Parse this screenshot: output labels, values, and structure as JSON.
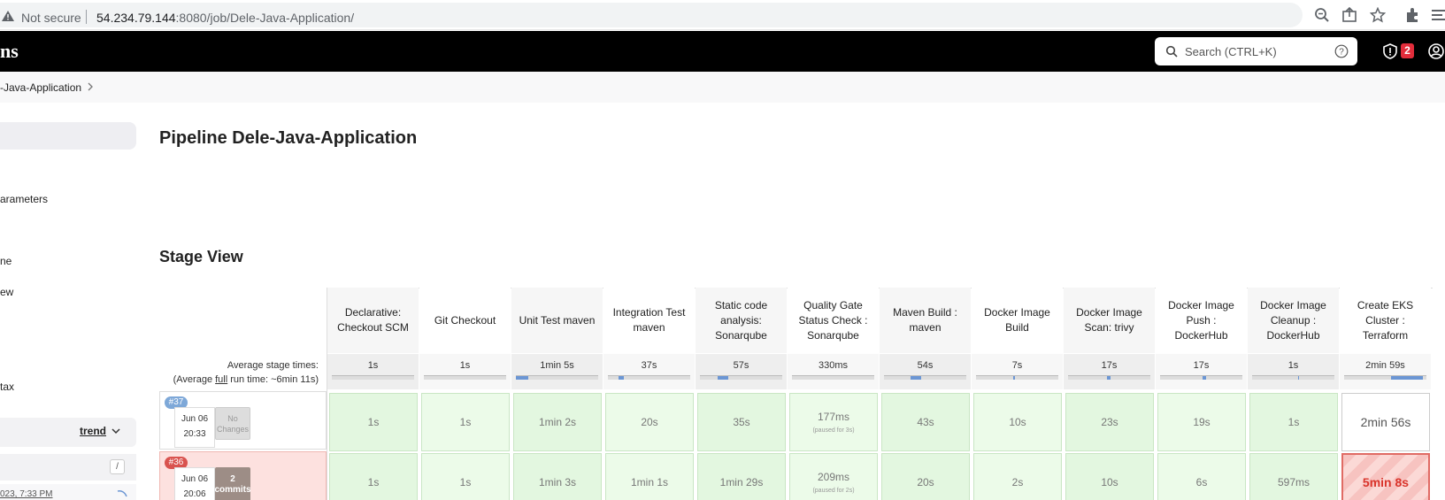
{
  "browser": {
    "security_label": "Not secure",
    "url_host": "54.234.79.144",
    "url_rest": ":8080/job/Dele-Java-Application/"
  },
  "header": {
    "logo_text": "ns",
    "search_placeholder": "Search (CTRL+K)",
    "security_badge_count": "2"
  },
  "breadcrumb": {
    "job_label": "-Java-Application"
  },
  "sidebar": {
    "items": [
      "arameters",
      "ne",
      "ew",
      "tax"
    ],
    "trend_label": "trend",
    "filter_key": "/",
    "history_date": "023, 7:33 PM"
  },
  "main": {
    "title": "Pipeline Dele-Java-Application",
    "stage_view_title": "Stage View",
    "avg_label_line1": "Average stage times:",
    "avg_label_prefix": "(Average ",
    "avg_label_full": "full",
    "avg_label_suffix": " run time: ~6min 11s)"
  },
  "stages": [
    {
      "name": "Declarative: Checkout SCM",
      "avg": "1s",
      "bar": [
        0,
        0
      ]
    },
    {
      "name": "Git Checkout",
      "avg": "1s",
      "bar": [
        0,
        0
      ]
    },
    {
      "name": "Unit Test maven",
      "avg": "1min 5s",
      "bar": [
        0,
        14
      ]
    },
    {
      "name": "Integration Test maven",
      "avg": "37s",
      "bar": [
        12,
        6
      ]
    },
    {
      "name": "Static code analysis: Sonarqube",
      "avg": "57s",
      "bar": [
        20,
        12
      ]
    },
    {
      "name": "Quality Gate Status Check : Sonarqube",
      "avg": "330ms",
      "bar": [
        0,
        0
      ]
    },
    {
      "name": "Maven Build : maven",
      "avg": "54s",
      "bar": [
        30,
        12
      ]
    },
    {
      "name": "Docker Image Build",
      "avg": "7s",
      "bar": [
        42,
        2
      ]
    },
    {
      "name": "Docker Image Scan: trivy",
      "avg": "17s",
      "bar": [
        44,
        4
      ]
    },
    {
      "name": "Docker Image Push : DockerHub",
      "avg": "17s",
      "bar": [
        48,
        4
      ]
    },
    {
      "name": "Docker Image Cleanup : DockerHub",
      "avg": "1s",
      "bar": [
        52,
        1
      ]
    },
    {
      "name": "Create EKS Cluster : Terraform",
      "avg": "2min 59s",
      "bar": [
        53,
        36
      ]
    }
  ],
  "builds": [
    {
      "number": "#37",
      "status": "success",
      "date": "Jun 06",
      "time": "20:33",
      "changes": "No Changes",
      "cells": [
        {
          "value": "1s"
        },
        {
          "value": "1s"
        },
        {
          "value": "1min 2s"
        },
        {
          "value": "20s"
        },
        {
          "value": "35s"
        },
        {
          "value": "177ms",
          "note": "(paused for 3s)"
        },
        {
          "value": "43s"
        },
        {
          "value": "10s"
        },
        {
          "value": "23s"
        },
        {
          "value": "19s"
        },
        {
          "value": "1s"
        },
        {
          "value": "2min 56s",
          "state": "running"
        }
      ]
    },
    {
      "number": "#36",
      "status": "failed",
      "date": "Jun 06",
      "time": "20:06",
      "changes_count": "2",
      "changes_label": "commits",
      "cells": [
        {
          "value": "1s"
        },
        {
          "value": "1s"
        },
        {
          "value": "1min 3s"
        },
        {
          "value": "1min 1s"
        },
        {
          "value": "1min 29s"
        },
        {
          "value": "209ms",
          "note": "(paused for 2s)"
        },
        {
          "value": "20s"
        },
        {
          "value": "2s"
        },
        {
          "value": "10s"
        },
        {
          "value": "6s"
        },
        {
          "value": "597ms"
        },
        {
          "value": "5min 8s",
          "state": "failed"
        }
      ]
    }
  ]
}
